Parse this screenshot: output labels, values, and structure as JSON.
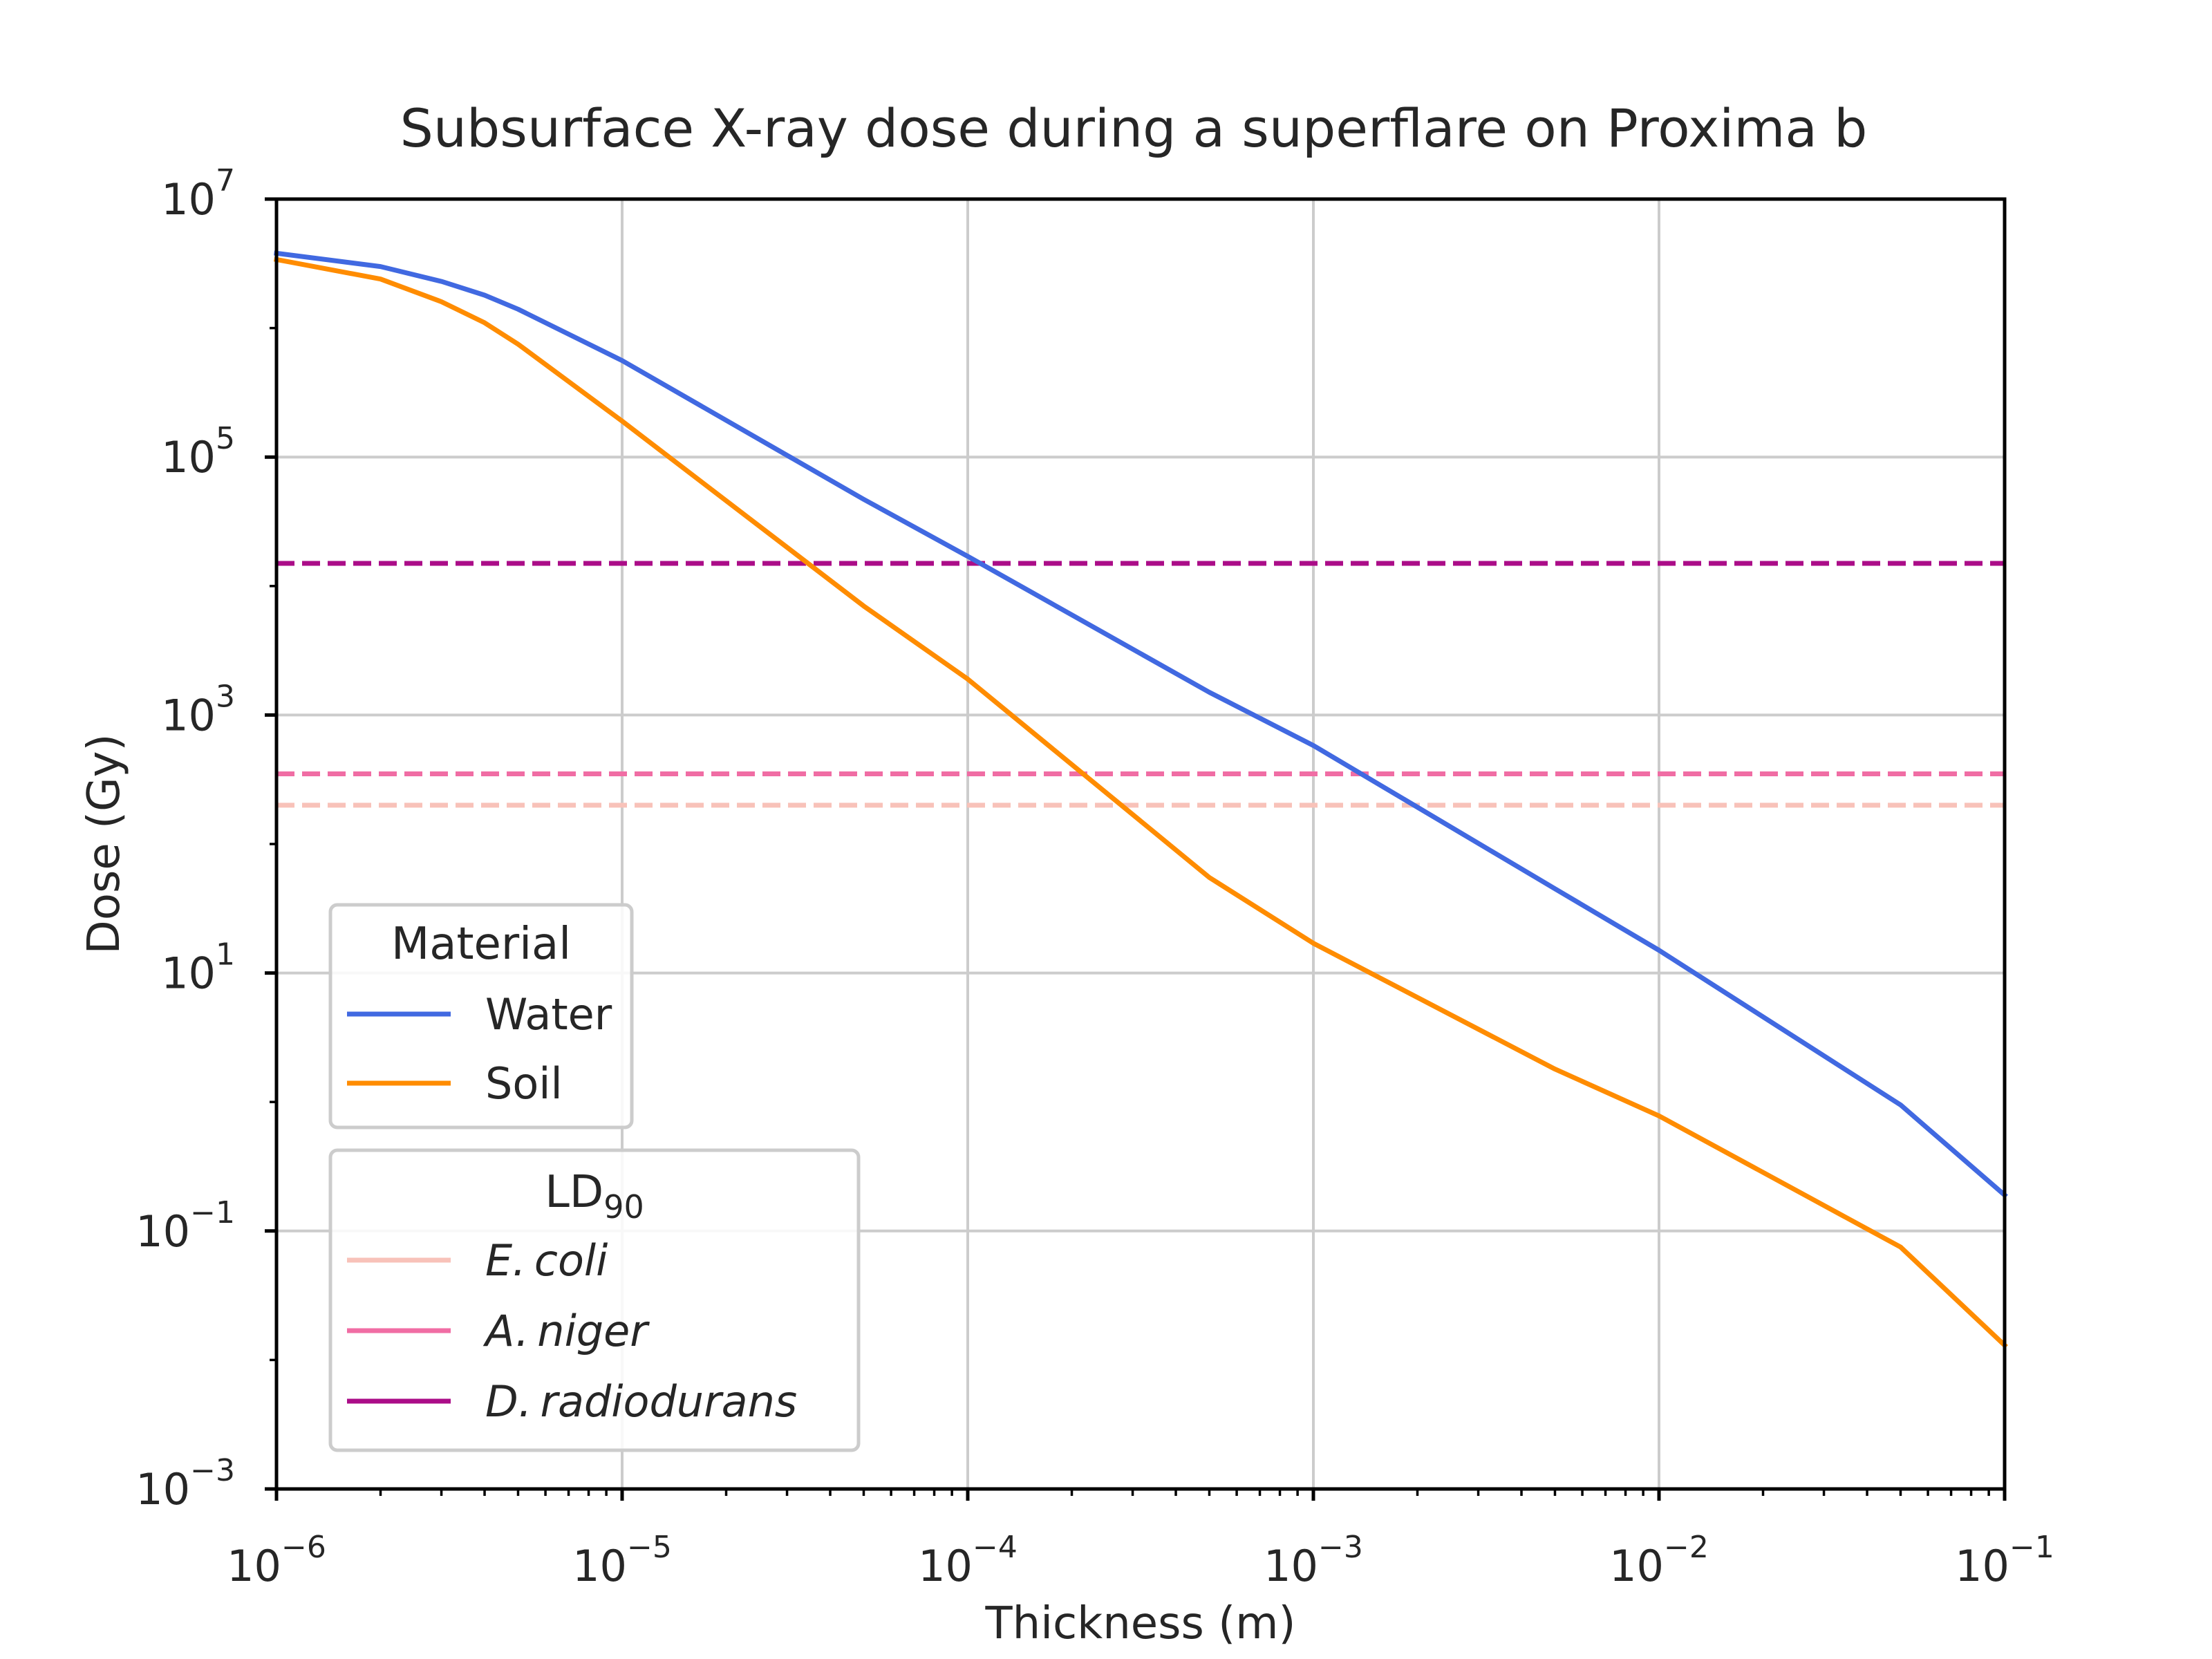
{
  "chart_data": {
    "type": "line",
    "title": "Subsurface X-ray dose during a superflare on Proxima b",
    "xlabel": "Thickness (m)",
    "ylabel": "Dose (Gy)",
    "xscale": "log",
    "yscale": "log",
    "xlim": [
      1e-06,
      0.1
    ],
    "ylim": [
      0.001,
      10000000
    ],
    "grid": true,
    "x_ticks": [
      {
        "base": "10",
        "exp": "−6"
      },
      {
        "base": "10",
        "exp": "−5"
      },
      {
        "base": "10",
        "exp": "−4"
      },
      {
        "base": "10",
        "exp": "−3"
      },
      {
        "base": "10",
        "exp": "−2"
      },
      {
        "base": "10",
        "exp": "−1"
      }
    ],
    "y_ticks": [
      {
        "base": "10",
        "exp": "−3"
      },
      {
        "base": "10",
        "exp": "−1"
      },
      {
        "base": "10",
        "exp": "1"
      },
      {
        "base": "10",
        "exp": "3"
      },
      {
        "base": "10",
        "exp": "5"
      },
      {
        "base": "10",
        "exp": "7"
      }
    ],
    "series": [
      {
        "name": "Water",
        "color": "#4169e1",
        "x": [
          1e-06,
          2e-06,
          3e-06,
          4e-06,
          5e-06,
          1e-05,
          5e-05,
          0.0001,
          0.0005,
          0.001,
          0.005,
          0.01,
          0.05,
          0.1
        ],
        "y": [
          3800000,
          3000000,
          2300000,
          1800000,
          1400000,
          560000,
          47000,
          17000,
          1500,
          580,
          45,
          15,
          0.95,
          0.19
        ]
      },
      {
        "name": "Soil",
        "color": "#ff8c00",
        "x": [
          1e-06,
          2e-06,
          3e-06,
          4e-06,
          5e-06,
          1e-05,
          5e-05,
          0.0001,
          0.0005,
          0.001,
          0.005,
          0.01,
          0.05,
          0.1
        ],
        "y": [
          3400000,
          2400000,
          1600000,
          1100000,
          750000,
          190000,
          7000,
          1900,
          55,
          17,
          1.8,
          0.78,
          0.075,
          0.013
        ]
      }
    ],
    "thresholds": [
      {
        "name": "E. coli",
        "prefix": "E.",
        "genus": "coli",
        "value": 200,
        "color": "#f8c2b9"
      },
      {
        "name": "A. niger",
        "prefix": "A.",
        "genus": "niger",
        "value": 350,
        "color": "#f06da4"
      },
      {
        "name": "D. radiodurans",
        "prefix": "D.",
        "genus": "radiodurans",
        "value": 15000,
        "color": "#ab0d88"
      }
    ],
    "legend_material": {
      "title": "Material",
      "location": "lower-left"
    },
    "legend_ld": {
      "title_base": "LD",
      "title_sub": "90",
      "location": "lower-left"
    }
  }
}
